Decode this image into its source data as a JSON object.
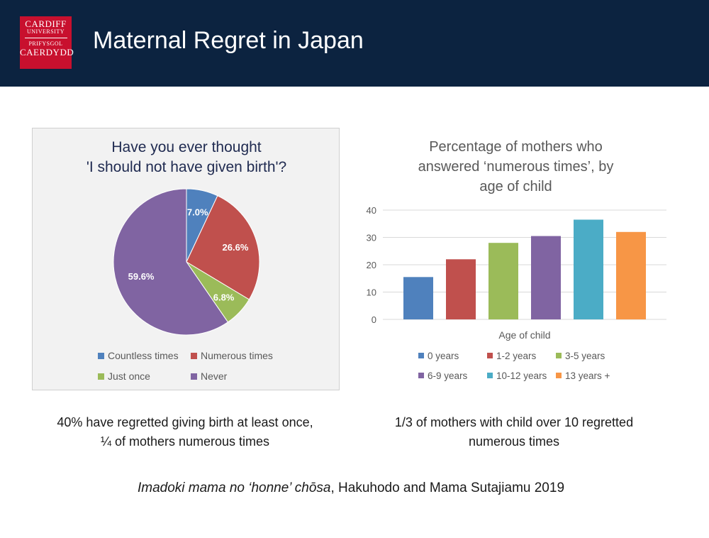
{
  "header": {
    "logo_line1": "CARDIFF",
    "logo_line2": "UNIVERSITY",
    "logo_line3": "PRIFYSGOL",
    "logo_line4": "CAERDYDD",
    "title": "Maternal Regret in Japan",
    "bg_color": "#0c2340",
    "logo_color": "#c8102e"
  },
  "chart_data": [
    {
      "type": "pie",
      "title_line1": "Have you ever thought",
      "title_line2": "'I should not have given birth'?",
      "slices": [
        {
          "label": "Countless times",
          "value": 7.0,
          "display": "7.0%",
          "color": "#4f81bd"
        },
        {
          "label": "Numerous times",
          "value": 26.6,
          "display": "26.6%",
          "color": "#c0504d"
        },
        {
          "label": "Just once",
          "value": 6.8,
          "display": "6.8%",
          "color": "#9bbb59"
        },
        {
          "label": "Never",
          "value": 59.6,
          "display": "59.6%",
          "color": "#8064a2"
        }
      ],
      "legend": "bottom"
    },
    {
      "type": "bar",
      "title_line1": "Percentage of mothers who",
      "title_line2": "answered ‘numerous times’, by",
      "title_line3": "age of child",
      "xlabel": "Age of child",
      "ylabel": "",
      "ylim": [
        0,
        40
      ],
      "yticks": [
        "0",
        "10",
        "20",
        "30",
        "40"
      ],
      "grid": true,
      "legend": "bottom",
      "categories": [
        "0 years",
        "1-2 years",
        "3-5 years",
        "6-9 years",
        "10-12 years",
        "13 years +"
      ],
      "values": [
        15.5,
        22,
        28,
        30.5,
        36.5,
        32
      ],
      "colors": [
        "#4f81bd",
        "#c0504d",
        "#9bbb59",
        "#8064a2",
        "#4bacc6",
        "#f79646"
      ]
    }
  ],
  "captions": {
    "left_line1": "40% have regretted giving birth at least once,",
    "left_line2": "¼ of mothers numerous times",
    "right_line1": "1/3 of mothers with child over 10 regretted",
    "right_line2": "numerous times"
  },
  "source": {
    "italic": "Imadoki mama no ‘honne’ chōsa",
    "rest": ", Hakuhodo and Mama Sutajiamu 2019"
  }
}
